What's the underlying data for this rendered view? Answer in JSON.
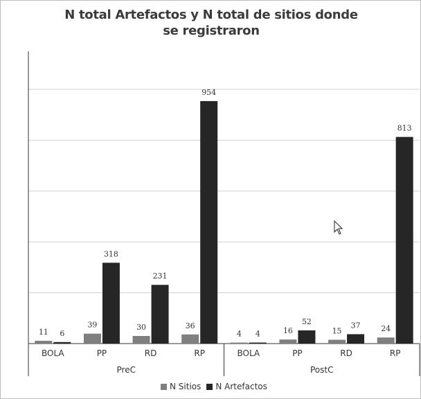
{
  "chart_data": {
    "type": "bar",
    "title": "N total Artefactos y N total de sitios donde se registraron",
    "groups": [
      "PreC",
      "PostC"
    ],
    "categories": [
      "BOLA",
      "PP",
      "RD",
      "RP",
      "BOLA",
      "PP",
      "RD",
      "RP"
    ],
    "group_of_category": [
      "PreC",
      "PreC",
      "PreC",
      "PreC",
      "PostC",
      "PostC",
      "PostC",
      "PostC"
    ],
    "series": [
      {
        "name": "N Sitios",
        "color": "#7f7f7f",
        "values": [
          11,
          39,
          30,
          36,
          4,
          16,
          15,
          24
        ]
      },
      {
        "name": "N Artefactos",
        "color": "#262626",
        "values": [
          6,
          318,
          231,
          954,
          4,
          52,
          37,
          813
        ]
      }
    ],
    "ylim": [
      0,
      1150
    ],
    "grid": true,
    "legend_position": "bottom"
  },
  "colors": {
    "grid": "#cfcfcf",
    "axis": "#333333",
    "label": "#333333"
  }
}
